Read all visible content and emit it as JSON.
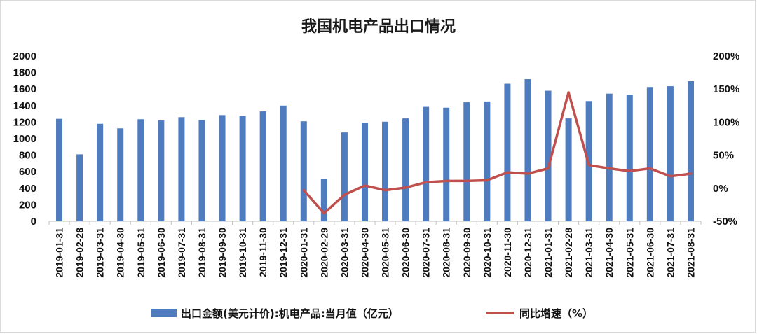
{
  "chart_data": {
    "type": "bar",
    "title": "我国机电产品出口情况",
    "categories": [
      "2019-01-31",
      "2019-02-28",
      "2019-03-31",
      "2019-04-30",
      "2019-05-31",
      "2019-06-30",
      "2019-07-31",
      "2019-08-31",
      "2019-09-30",
      "2019-10-31",
      "2019-11-30",
      "2019-12-31",
      "2020-01-31",
      "2020-02-29",
      "2020-03-31",
      "2020-04-30",
      "2020-05-31",
      "2020-06-30",
      "2020-07-31",
      "2020-08-31",
      "2020-09-30",
      "2020-10-31",
      "2020-11-30",
      "2020-12-31",
      "2021-01-31",
      "2021-02-28",
      "2021-03-31",
      "2021-04-30",
      "2021-05-31",
      "2021-06-30",
      "2021-07-31",
      "2021-08-31"
    ],
    "series": [
      {
        "name": "出口金额(美元计价):机电产品:当月值（亿元）",
        "type": "bar",
        "axis": "left",
        "color": "#4f7bbf",
        "values": [
          1240,
          810,
          1180,
          1125,
          1235,
          1220,
          1260,
          1225,
          1285,
          1275,
          1330,
          1400,
          1210,
          510,
          1075,
          1190,
          1205,
          1245,
          1385,
          1375,
          1440,
          1450,
          1665,
          1720,
          1580,
          1245,
          1455,
          1545,
          1530,
          1625,
          1635,
          1695
        ]
      },
      {
        "name": "同比增速（%）",
        "type": "line",
        "axis": "right",
        "color": "#c0504d",
        "values": [
          null,
          null,
          null,
          null,
          null,
          null,
          null,
          null,
          null,
          null,
          null,
          null,
          -3,
          -38,
          -10,
          4,
          -3,
          1,
          9,
          11,
          11,
          12,
          24,
          22,
          30,
          145,
          35,
          30,
          26,
          30,
          18,
          22
        ]
      }
    ],
    "y_left": {
      "lim": [
        0,
        2000
      ],
      "ticks": [
        "0",
        "200",
        "400",
        "600",
        "800",
        "1000",
        "1200",
        "1400",
        "1600",
        "1800",
        "2000"
      ]
    },
    "y_right": {
      "lim": [
        -50,
        200
      ],
      "ticks": [
        "-50%",
        "0%",
        "50%",
        "100%",
        "150%",
        "200%"
      ]
    },
    "grid": false,
    "legend_position": "bottom"
  }
}
